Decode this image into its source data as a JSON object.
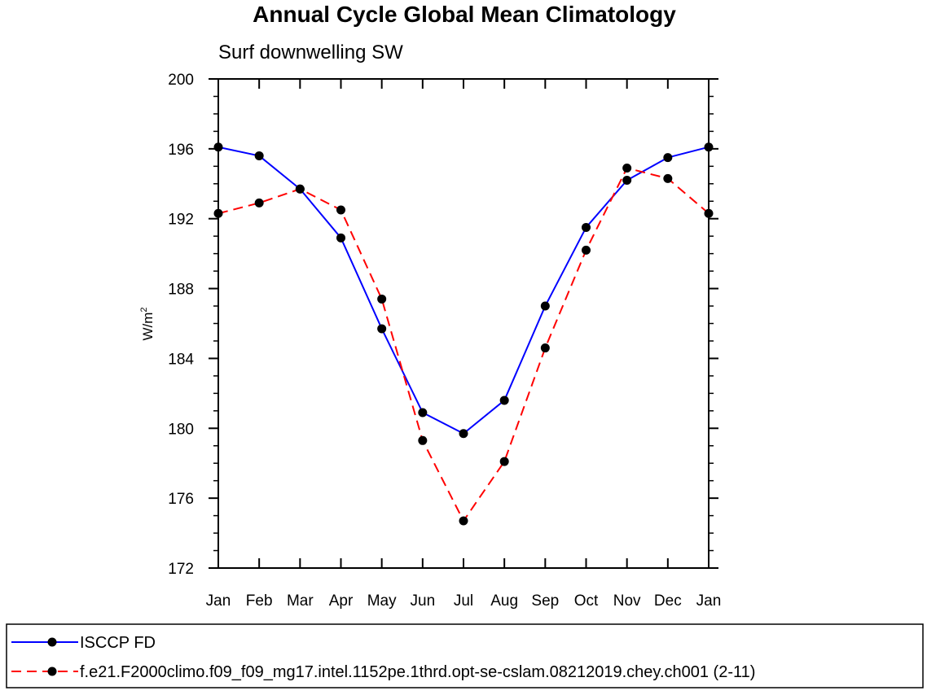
{
  "chart_data": {
    "type": "line",
    "title": "Annual Cycle Global Mean Climatology",
    "subtitle": "Surf downwelling SW",
    "ylabel": "W/m",
    "ylabel_sup": "2",
    "xlabel": "",
    "categories": [
      "Jan",
      "Feb",
      "Mar",
      "Apr",
      "May",
      "Jun",
      "Jul",
      "Aug",
      "Sep",
      "Oct",
      "Nov",
      "Dec",
      "Jan"
    ],
    "ylim": [
      172,
      200
    ],
    "yticks": [
      172,
      176,
      180,
      184,
      188,
      192,
      196,
      200
    ],
    "yminor_step": 1,
    "grid": false,
    "legend_position": "bottom",
    "series": [
      {
        "name": "ISCCP FD",
        "color": "#0000ff",
        "dash": "solid",
        "marker": "filled-circle",
        "values": [
          196.1,
          195.6,
          193.7,
          190.9,
          185.7,
          180.9,
          179.7,
          181.6,
          187.0,
          191.5,
          194.2,
          195.5,
          196.1
        ]
      },
      {
        "name": "f.e21.F2000climo.f09_f09_mg17.intel.1152pe.1thrd.opt-se-cslam.08212019.chey.ch001 (2-11)",
        "color": "#ff0000",
        "dash": "dashed",
        "marker": "filled-circle",
        "values": [
          192.3,
          192.9,
          193.7,
          192.5,
          187.4,
          179.3,
          174.7,
          178.1,
          184.6,
          190.2,
          194.9,
          194.3,
          192.3
        ]
      }
    ]
  }
}
